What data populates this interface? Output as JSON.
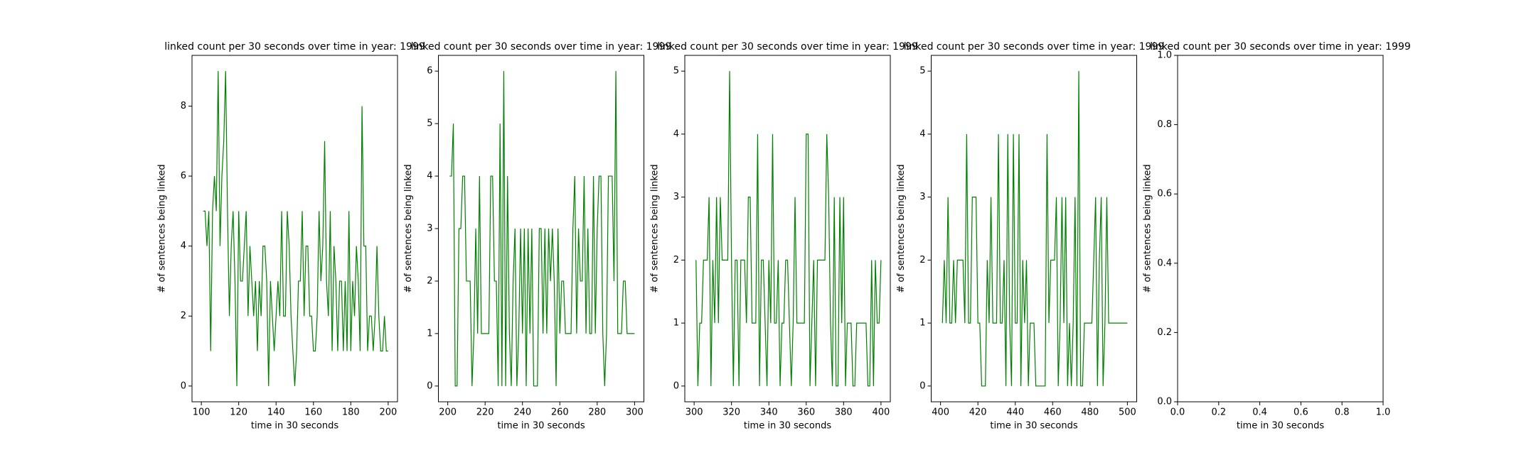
{
  "chart_data": [
    {
      "type": "line",
      "title": "linked count per 30 seconds over time in year: 1999",
      "xlabel": "time in 30 seconds",
      "ylabel": "# of sentences being linked",
      "x": [
        101,
        102,
        103,
        104,
        105,
        106,
        107,
        108,
        109,
        110,
        111,
        112,
        113,
        114,
        115,
        116,
        117,
        118,
        119,
        120,
        121,
        122,
        123,
        124,
        125,
        126,
        127,
        128,
        129,
        130,
        131,
        132,
        133,
        134,
        135,
        136,
        137,
        138,
        139,
        140,
        141,
        142,
        143,
        144,
        145,
        146,
        147,
        148,
        149,
        150,
        151,
        152,
        153,
        154,
        155,
        156,
        157,
        158,
        159,
        160,
        161,
        162,
        163,
        164,
        165,
        166,
        167,
        168,
        169,
        170,
        171,
        172,
        173,
        174,
        175,
        176,
        177,
        178,
        179,
        180,
        181,
        182,
        183,
        184,
        185,
        186,
        187,
        188,
        189,
        190,
        191,
        192,
        193,
        194,
        195,
        196,
        197,
        198,
        199,
        200
      ],
      "series": [
        {
          "color": "#008000",
          "values": [
            5,
            5,
            4,
            5,
            1,
            5,
            6,
            5,
            9,
            4,
            6,
            7,
            9,
            5,
            2,
            4,
            5,
            3,
            0,
            5,
            3,
            3,
            4,
            5,
            2,
            4,
            3,
            2,
            3,
            1,
            3,
            2,
            4,
            4,
            3,
            0,
            3,
            2,
            1,
            2,
            3,
            2,
            5,
            2,
            2,
            5,
            4,
            2,
            1,
            0,
            1,
            3,
            3,
            5,
            2,
            4,
            4,
            2,
            2,
            1,
            1,
            2,
            5,
            3,
            4,
            7,
            3,
            2,
            5,
            1,
            4,
            3,
            1,
            3,
            3,
            1,
            3,
            1,
            5,
            1,
            3,
            2,
            4,
            3,
            1,
            8,
            4,
            4,
            1,
            2,
            2,
            1,
            2,
            4,
            2,
            1,
            1,
            2,
            1,
            1
          ]
        }
      ],
      "xlim": [
        95,
        205
      ],
      "xticks": [
        100,
        120,
        140,
        160,
        180,
        200
      ],
      "ylim": [
        -0.45,
        9.45
      ],
      "yticks": [
        0,
        2,
        4,
        6,
        8
      ]
    },
    {
      "type": "line",
      "title": "linked count per 30 seconds over time in year: 1999",
      "xlabel": "time in 30 seconds",
      "ylabel": "# of sentences being linked",
      "x": [
        201,
        202,
        203,
        204,
        205,
        206,
        207,
        208,
        209,
        210,
        211,
        212,
        213,
        214,
        215,
        216,
        217,
        218,
        219,
        220,
        221,
        222,
        223,
        224,
        225,
        226,
        227,
        228,
        229,
        230,
        231,
        232,
        233,
        234,
        235,
        236,
        237,
        238,
        239,
        240,
        241,
        242,
        243,
        244,
        245,
        246,
        247,
        248,
        249,
        250,
        251,
        252,
        253,
        254,
        255,
        256,
        257,
        258,
        259,
        260,
        261,
        262,
        263,
        264,
        265,
        266,
        267,
        268,
        269,
        270,
        271,
        272,
        273,
        274,
        275,
        276,
        277,
        278,
        279,
        280,
        281,
        282,
        283,
        284,
        285,
        286,
        287,
        288,
        289,
        290,
        291,
        292,
        293,
        294,
        295,
        296,
        297,
        298,
        299,
        300
      ],
      "series": [
        {
          "color": "#008000",
          "values": [
            4,
            4,
            5,
            0,
            0,
            3,
            3,
            4,
            4,
            2,
            2,
            2,
            0,
            1,
            3,
            1,
            4,
            1,
            1,
            1,
            1,
            1,
            4,
            4,
            2,
            2,
            0,
            5,
            0,
            6,
            0,
            4,
            1,
            0,
            2,
            3,
            0,
            1,
            3,
            1,
            3,
            0,
            3,
            1,
            3,
            0,
            0,
            0,
            3,
            3,
            1,
            3,
            1,
            3,
            2,
            3,
            2,
            0,
            3,
            1,
            2,
            2,
            1,
            1,
            1,
            1,
            3,
            4,
            1,
            3,
            2,
            2,
            4,
            1,
            3,
            1,
            1,
            4,
            1,
            3,
            4,
            4,
            1,
            0,
            1,
            4,
            4,
            4,
            2,
            6,
            1,
            1,
            1,
            2,
            2,
            1,
            1,
            1,
            1,
            1
          ]
        }
      ],
      "xlim": [
        195,
        305
      ],
      "xticks": [
        200,
        220,
        240,
        260,
        280,
        300
      ],
      "ylim": [
        -0.3,
        6.3
      ],
      "yticks": [
        0,
        1,
        2,
        3,
        4,
        5,
        6
      ]
    },
    {
      "type": "line",
      "title": "linked count per 30 seconds over time in year: 1999",
      "xlabel": "time in 30 seconds",
      "ylabel": "# of sentences being linked",
      "x": [
        301,
        302,
        303,
        304,
        305,
        306,
        307,
        308,
        309,
        310,
        311,
        312,
        313,
        314,
        315,
        316,
        317,
        318,
        319,
        320,
        321,
        322,
        323,
        324,
        325,
        326,
        327,
        328,
        329,
        330,
        331,
        332,
        333,
        334,
        335,
        336,
        337,
        338,
        339,
        340,
        341,
        342,
        343,
        344,
        345,
        346,
        347,
        348,
        349,
        350,
        351,
        352,
        353,
        354,
        355,
        356,
        357,
        358,
        359,
        360,
        361,
        362,
        363,
        364,
        365,
        366,
        367,
        368,
        369,
        370,
        371,
        372,
        373,
        374,
        375,
        376,
        377,
        378,
        379,
        380,
        381,
        382,
        383,
        384,
        385,
        386,
        387,
        388,
        389,
        390,
        391,
        392,
        393,
        394,
        395,
        396,
        397,
        398,
        399,
        400
      ],
      "series": [
        {
          "color": "#008000",
          "values": [
            2,
            0,
            1,
            1,
            2,
            2,
            2,
            3,
            0,
            2,
            1,
            3,
            1,
            3,
            2,
            2,
            2,
            2,
            5,
            2,
            0,
            2,
            2,
            0,
            2,
            2,
            2,
            1,
            3,
            3,
            1,
            1,
            1,
            4,
            0,
            2,
            2,
            1,
            0,
            2,
            1,
            4,
            1,
            1,
            2,
            0,
            1,
            1,
            2,
            2,
            1,
            0,
            1,
            3,
            1,
            1,
            1,
            1,
            1,
            4,
            4,
            0,
            1,
            2,
            0,
            2,
            2,
            2,
            2,
            2,
            4,
            3,
            1,
            0,
            3,
            0,
            0,
            3,
            1,
            3,
            0,
            1,
            1,
            1,
            0,
            0,
            1,
            1,
            1,
            1,
            1,
            1,
            0,
            0,
            2,
            0,
            2,
            1,
            1,
            2
          ]
        }
      ],
      "xlim": [
        295,
        405
      ],
      "xticks": [
        300,
        320,
        340,
        360,
        380,
        400
      ],
      "ylim": [
        -0.25,
        5.25
      ],
      "yticks": [
        0,
        1,
        2,
        3,
        4,
        5
      ]
    },
    {
      "type": "line",
      "title": "linked count per 30 seconds over time in year: 1999",
      "xlabel": "time in 30 seconds",
      "ylabel": "# of sentences being linked",
      "x": [
        401,
        402,
        403,
        404,
        405,
        406,
        407,
        408,
        409,
        410,
        411,
        412,
        413,
        414,
        415,
        416,
        417,
        418,
        419,
        420,
        421,
        422,
        423,
        424,
        425,
        426,
        427,
        428,
        429,
        430,
        431,
        432,
        433,
        434,
        435,
        436,
        437,
        438,
        439,
        440,
        441,
        442,
        443,
        444,
        445,
        446,
        447,
        448,
        449,
        450,
        451,
        452,
        453,
        454,
        455,
        456,
        457,
        458,
        459,
        460,
        461,
        462,
        463,
        464,
        465,
        466,
        467,
        468,
        469,
        470,
        471,
        472,
        473,
        474,
        475,
        476,
        477,
        478,
        479,
        480,
        481,
        482,
        483,
        484,
        485,
        486,
        487,
        488,
        489,
        490,
        491,
        492,
        493,
        494,
        495,
        496,
        497,
        498,
        499,
        500
      ],
      "series": [
        {
          "color": "#008000",
          "values": [
            1,
            2,
            1,
            3,
            1,
            1,
            2,
            1,
            2,
            2,
            2,
            2,
            1,
            4,
            1,
            1,
            3,
            3,
            3,
            1,
            1,
            0,
            0,
            0,
            2,
            1,
            3,
            1,
            1,
            1,
            4,
            1,
            1,
            2,
            0,
            4,
            1,
            0,
            4,
            1,
            1,
            4,
            0,
            2,
            1,
            2,
            0,
            1,
            1,
            1,
            0,
            0,
            0,
            0,
            0,
            0,
            4,
            1,
            2,
            2,
            2,
            3,
            0,
            1,
            3,
            1,
            3,
            0,
            1,
            0,
            1,
            3,
            0,
            5,
            0,
            0,
            1,
            1,
            1,
            1,
            1,
            2,
            3,
            0,
            2,
            3,
            0,
            1,
            3,
            1,
            1,
            1,
            1,
            1,
            1,
            1,
            1,
            1,
            1,
            1
          ]
        }
      ],
      "xlim": [
        395,
        505
      ],
      "xticks": [
        400,
        420,
        440,
        460,
        480,
        500
      ],
      "ylim": [
        -0.25,
        5.25
      ],
      "yticks": [
        0,
        1,
        2,
        3,
        4,
        5
      ]
    },
    {
      "type": "line",
      "title": "linked count per 30 seconds over time in year: 1999",
      "xlabel": "time in 30 seconds",
      "ylabel": "# of sentences being linked",
      "x": [],
      "series": [],
      "xlim": [
        0,
        1
      ],
      "xticks": [
        {
          "value": 0,
          "label": "0.0"
        },
        {
          "value": 0.2,
          "label": "0.2"
        },
        {
          "value": 0.4,
          "label": "0.4"
        },
        {
          "value": 0.6,
          "label": "0.6"
        },
        {
          "value": 0.8,
          "label": "0.8"
        },
        {
          "value": 1,
          "label": "1.0"
        }
      ],
      "ylim": [
        0,
        1
      ],
      "yticks": [
        {
          "value": 0,
          "label": "0.0"
        },
        {
          "value": 0.2,
          "label": "0.2"
        },
        {
          "value": 0.4,
          "label": "0.4"
        },
        {
          "value": 0.6,
          "label": "0.6"
        },
        {
          "value": 0.8,
          "label": "0.8"
        },
        {
          "value": 1,
          "label": "1.0"
        }
      ]
    }
  ]
}
